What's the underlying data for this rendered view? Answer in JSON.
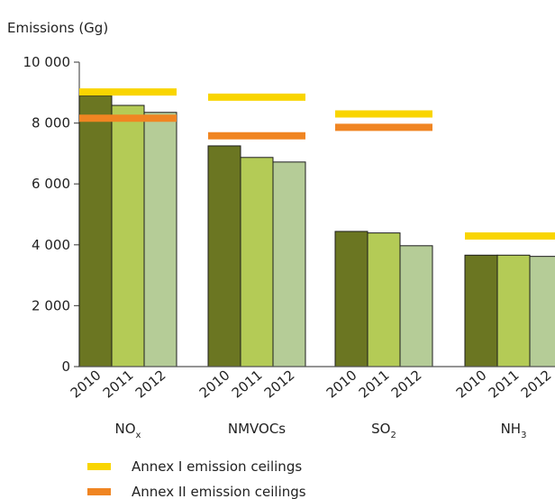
{
  "chart_data": {
    "type": "bar",
    "ylabel": "Emissions (Gg)",
    "ylim": [
      0,
      10000
    ],
    "yticks": [
      0,
      2000,
      4000,
      6000,
      8000,
      10000
    ],
    "ytick_labels": [
      "0",
      "2 000",
      "4 000",
      "6 000",
      "8 000",
      "10 000"
    ],
    "years": [
      "2010",
      "2011",
      "2012"
    ],
    "year_colors": [
      "#6b7622",
      "#b4cb56",
      "#b5cc97"
    ],
    "groups": [
      {
        "name": "NO",
        "sub": "x",
        "values": [
          8900,
          8580,
          8350
        ],
        "annex1": 9020,
        "annex2": 8160
      },
      {
        "name": "NMVOCs",
        "sub": "",
        "values": [
          7250,
          6870,
          6720
        ],
        "annex1": 8850,
        "annex2": 7580
      },
      {
        "name": "SO",
        "sub": "2",
        "values": [
          4440,
          4390,
          3970
        ],
        "annex1": 8300,
        "annex2": 7860
      },
      {
        "name": "NH",
        "sub": "3",
        "values": [
          3660,
          3660,
          3620
        ],
        "annex1": 4290,
        "annex2": null
      }
    ],
    "ceilings": [
      {
        "name": "Annex I emission ceilings",
        "color": "#f9d500"
      },
      {
        "name": "Annex II emission ceilings",
        "color": "#f08522"
      }
    ],
    "grid": false,
    "legend_position": "bottom-left"
  }
}
